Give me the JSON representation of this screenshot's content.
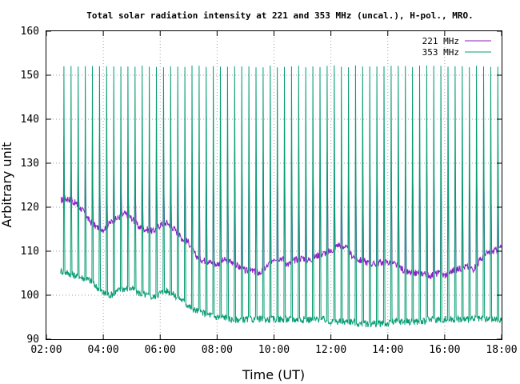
{
  "chart_data": {
    "type": "line",
    "title": "Total solar radiation intensity at 221 and 353 MHz (uncal.), H-pol., MRO.",
    "xlabel": "Time (UT)",
    "ylabel": "Arbitrary unit",
    "xlim": [
      "02:00",
      "18:00"
    ],
    "ylim": [
      90,
      160
    ],
    "x_ticks": [
      "02:00",
      "04:00",
      "06:00",
      "08:00",
      "10:00",
      "12:00",
      "14:00",
      "16:00",
      "18:00"
    ],
    "y_ticks": [
      90,
      100,
      110,
      120,
      130,
      140,
      150,
      160
    ],
    "grid": true,
    "legend_position": "top-right",
    "series": [
      {
        "name": "221 MHz",
        "color": "#8b1fc6",
        "x": [
          "02:30",
          "02:45",
          "03:00",
          "03:15",
          "03:30",
          "03:45",
          "04:00",
          "04:15",
          "04:30",
          "04:45",
          "05:00",
          "05:15",
          "05:30",
          "05:45",
          "06:00",
          "06:15",
          "06:30",
          "06:45",
          "07:00",
          "07:15",
          "07:30",
          "07:45",
          "08:00",
          "08:15",
          "08:30",
          "08:45",
          "09:00",
          "09:15",
          "09:30",
          "09:45",
          "10:00",
          "10:15",
          "10:30",
          "10:45",
          "11:00",
          "11:15",
          "11:30",
          "11:45",
          "12:00",
          "12:15",
          "12:30",
          "12:45",
          "13:00",
          "13:15",
          "13:30",
          "13:45",
          "14:00",
          "14:15",
          "14:30",
          "14:45",
          "15:00",
          "15:15",
          "15:30",
          "15:45",
          "16:00",
          "16:15",
          "16:30",
          "16:45",
          "17:00",
          "17:15",
          "17:30",
          "17:45",
          "18:00"
        ],
        "values": [
          121.5,
          122,
          121,
          119.5,
          117,
          115.5,
          115,
          116.5,
          117.5,
          118.5,
          117.5,
          115.5,
          115,
          114.5,
          116,
          116.5,
          115,
          113,
          112,
          109,
          108,
          107.5,
          107,
          108,
          107.5,
          106.5,
          105.5,
          105.5,
          105,
          106.5,
          108.5,
          108.5,
          107,
          108,
          108.5,
          108,
          109,
          109.5,
          110,
          111.5,
          111,
          109,
          108,
          107.5,
          107,
          107.5,
          107.5,
          107,
          106,
          105,
          105,
          105,
          104.5,
          105,
          104.5,
          105.5,
          106,
          106.5,
          106,
          108,
          109.5,
          110,
          111
        ]
      },
      {
        "name": "353 MHz",
        "color": "#079c73",
        "x": [
          "02:30",
          "02:45",
          "03:00",
          "03:15",
          "03:30",
          "03:45",
          "04:00",
          "04:15",
          "04:30",
          "04:45",
          "05:00",
          "05:15",
          "05:30",
          "05:45",
          "06:00",
          "06:15",
          "06:30",
          "06:45",
          "07:00",
          "07:15",
          "07:30",
          "07:45",
          "08:00",
          "08:15",
          "08:30",
          "08:45",
          "09:00",
          "09:15",
          "09:30",
          "09:45",
          "10:00",
          "10:15",
          "10:30",
          "10:45",
          "11:00",
          "11:15",
          "11:30",
          "11:45",
          "12:00",
          "12:15",
          "12:30",
          "12:45",
          "13:00",
          "13:15",
          "13:30",
          "13:45",
          "14:00",
          "14:15",
          "14:30",
          "14:45",
          "15:00",
          "15:15",
          "15:30",
          "15:45",
          "16:00",
          "16:15",
          "16:30",
          "16:45",
          "17:00",
          "17:15",
          "17:30",
          "17:45",
          "18:00"
        ],
        "values": [
          105.5,
          105,
          104.5,
          104,
          103.5,
          102,
          100.5,
          100,
          101,
          101.5,
          101.5,
          100.5,
          100,
          99.5,
          100.5,
          101,
          100,
          99,
          97.5,
          96.5,
          96,
          95.5,
          95,
          95,
          94.5,
          94.5,
          94.5,
          94.5,
          94.5,
          94.5,
          94.5,
          94.5,
          94.5,
          94.5,
          94.5,
          94.5,
          94.5,
          94.5,
          94,
          94,
          94,
          94,
          93.5,
          93.5,
          93.5,
          93.5,
          93.5,
          94,
          94,
          94,
          94,
          94,
          94.5,
          94.5,
          94.5,
          94.5,
          94.5,
          94.5,
          94.5,
          94.5,
          94.5,
          94.5,
          94.5
        ]
      }
    ]
  }
}
